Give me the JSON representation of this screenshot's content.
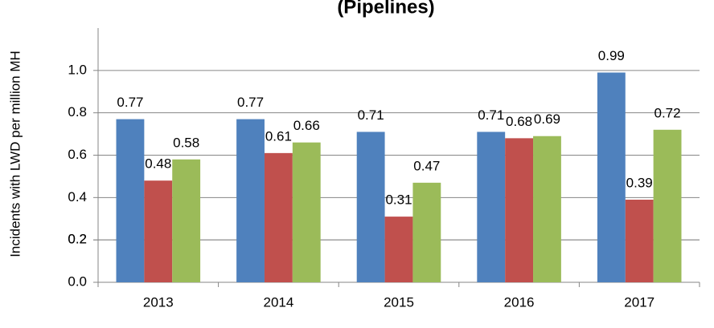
{
  "chart_data": {
    "type": "bar",
    "title": "(Pipelines)",
    "y_axis_label": "Incidents with LWD per  million MH",
    "categories": [
      "2013",
      "2014",
      "2015",
      "2016",
      "2017"
    ],
    "series": [
      {
        "color": "#4f81bd",
        "values": [
          0.77,
          0.77,
          0.71,
          0.71,
          0.99
        ]
      },
      {
        "color": "#c0504d",
        "values": [
          0.48,
          0.61,
          0.31,
          0.68,
          0.39
        ]
      },
      {
        "color": "#9bbb59",
        "values": [
          0.58,
          0.66,
          0.47,
          0.69,
          0.72
        ]
      }
    ],
    "ylim": [
      0,
      1.2
    ],
    "yticks": [
      {
        "value": 0,
        "label": "0.0"
      },
      0.2,
      0.4,
      0.6,
      0.8,
      {
        "value": 1,
        "label": "1.0"
      },
      0.2
    ],
    "grid": true
  }
}
